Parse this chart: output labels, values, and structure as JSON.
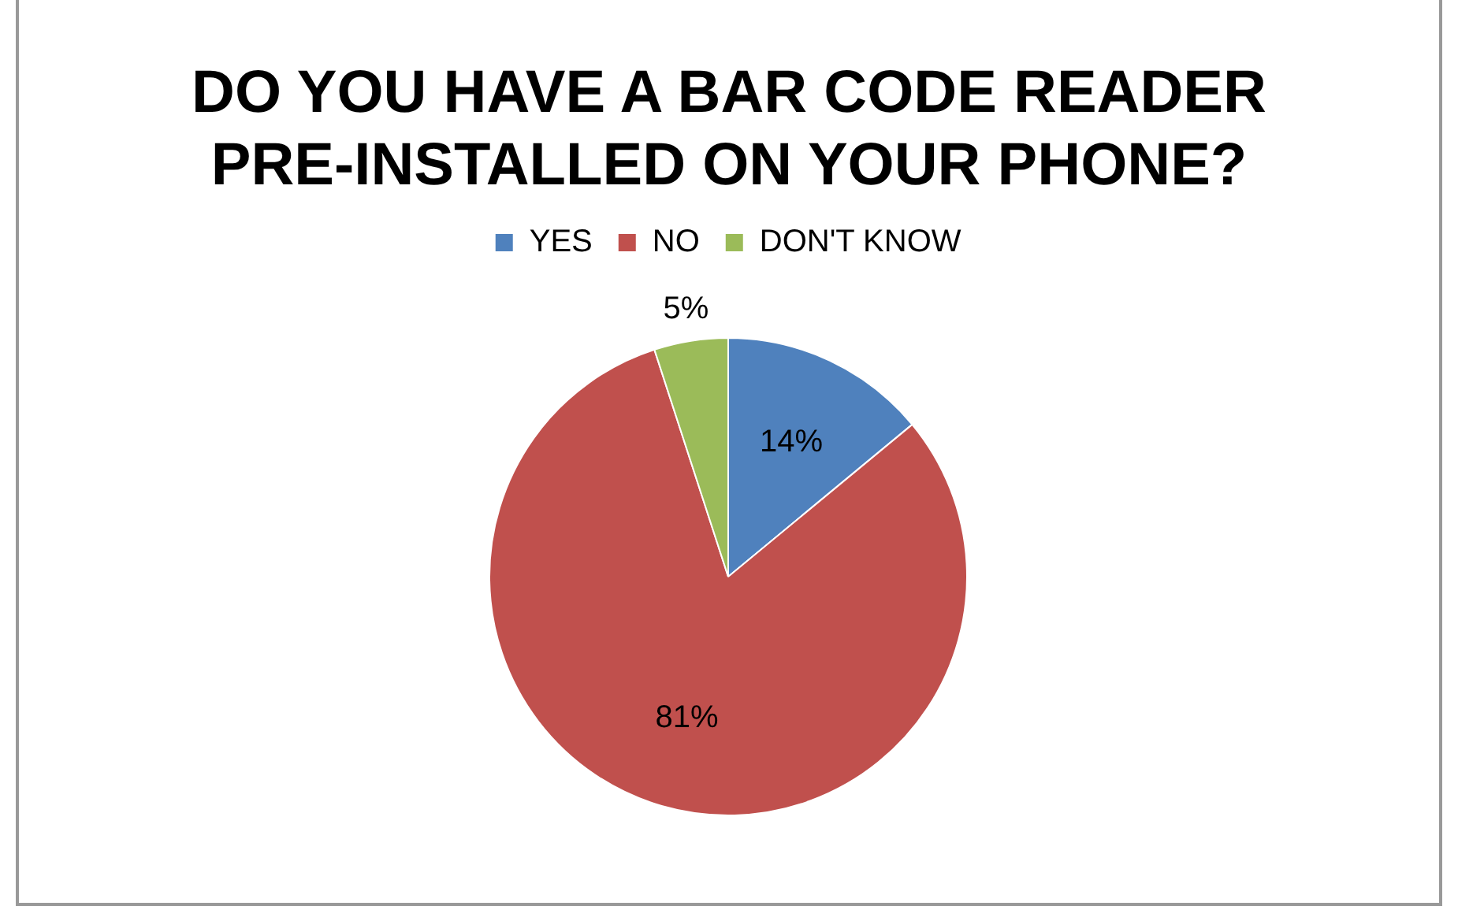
{
  "chart_data": {
    "type": "pie",
    "title": "DO YOU HAVE A BAR CODE READER PRE-INSTALLED ON YOUR PHONE?",
    "categories": [
      "YES",
      "NO",
      "DON'T KNOW"
    ],
    "values": [
      14,
      81,
      5
    ],
    "colors": [
      "#4f81bd",
      "#c0504d",
      "#9bbb59"
    ],
    "value_labels": [
      "14%",
      "81%",
      "5%"
    ],
    "legend": "top"
  }
}
